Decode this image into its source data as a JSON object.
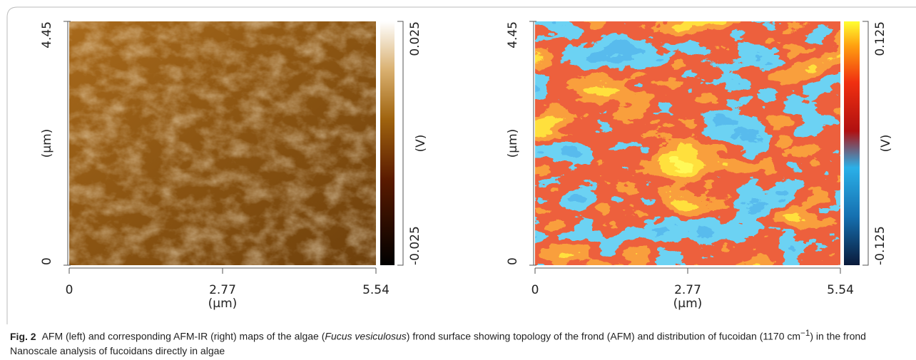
{
  "figure": {
    "panels": [
      {
        "xticks": [
          0,
          2.77,
          5.54
        ],
        "xlim": [
          0,
          5.54
        ],
        "xlabel": "(μm)",
        "yticks": [
          0,
          4.45
        ],
        "ylim": [
          0,
          4.45
        ],
        "ylabel": "(μm)",
        "cticks": [
          -0.025,
          0.025
        ],
        "clim": [
          -0.025,
          0.025
        ],
        "clabel": "(V)"
      },
      {
        "xticks": [
          0,
          2.77,
          5.54
        ],
        "xlim": [
          0,
          5.54
        ],
        "xlabel": "(μm)",
        "yticks": [
          0,
          4.45
        ],
        "ylim": [
          0,
          4.45
        ],
        "ylabel": "(μm)",
        "cticks": [
          -0.125,
          0.125
        ],
        "clim": [
          -0.125,
          0.125
        ],
        "clabel": "(V)"
      }
    ],
    "caption": {
      "label": "Fig. 2",
      "text_1": "AFM (left) and corresponding AFM-IR (right) maps of the algae (",
      "species": "Fucus vesiculosus",
      "text_2": ") frond surface showing topology of the frond (AFM) and distribution of fucoidan (1170 cm",
      "superscript": "−1",
      "text_3": ") in the frond Nanoscale analysis of fucoidans directly in algae"
    }
  }
}
